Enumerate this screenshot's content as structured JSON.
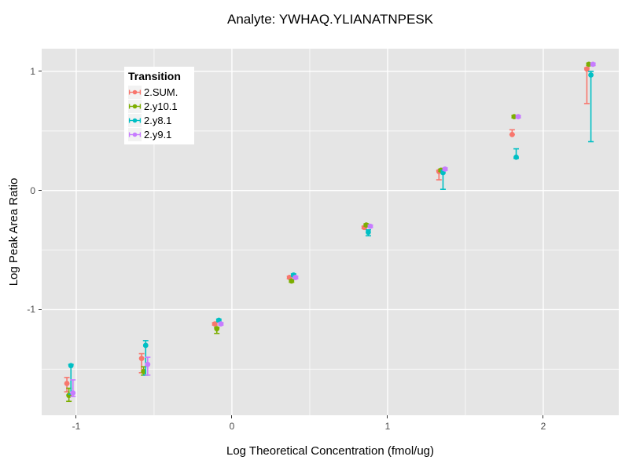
{
  "chart_data": {
    "type": "scatter",
    "subtype": "pointrange-with-errorbars",
    "title": "Analyte: YWHAQ.YLIANATNPESK",
    "xlabel": "Log Theoretical Concentration (fmol/ug)",
    "ylabel": "Log Peak Area Ratio",
    "legend_title": "Transition",
    "legend_position": "inset-top-left",
    "panel_bg": "#E5E5E5",
    "grid_color": "#FFFFFF",
    "tick_label_color": "#4D4D4D",
    "axis_tick_color": "#333333",
    "xlim": [
      -1.222,
      2.485
    ],
    "ylim": [
      -1.887,
      1.191
    ],
    "x_major_ticks": [
      -1,
      0,
      1,
      2
    ],
    "y_major_ticks": [
      -1,
      0,
      1
    ],
    "x_minor_gridlines": [
      -0.5,
      0.5,
      1.5
    ],
    "y_minor_gridlines": [
      -1.5,
      -0.5,
      0.5
    ],
    "x": [
      -1.04,
      -0.56,
      -0.09,
      0.39,
      0.87,
      1.35,
      1.82,
      2.3
    ],
    "series": [
      {
        "name": "2.SUM.",
        "color": "#F8766D",
        "dodge": -0.02,
        "y": [
          -1.62,
          -1.41,
          -1.12,
          -0.73,
          -0.31,
          0.16,
          0.47,
          1.02
        ],
        "ymin": [
          -1.69,
          -1.53,
          -1.13,
          -0.74,
          -0.32,
          0.09,
          0.47,
          0.73
        ],
        "ymax": [
          -1.57,
          -1.37,
          -1.11,
          -0.72,
          -0.3,
          0.17,
          0.51,
          1.03
        ]
      },
      {
        "name": "2.y10.1",
        "color": "#7CAE00",
        "dodge": -0.007,
        "y": [
          -1.72,
          -1.52,
          -1.16,
          -0.76,
          -0.29,
          0.17,
          0.62,
          1.06
        ],
        "ymin": [
          -1.77,
          -1.55,
          -1.2,
          -0.77,
          -0.3,
          0.16,
          0.61,
          1.05
        ],
        "ymax": [
          -1.66,
          -1.48,
          -1.15,
          -0.75,
          -0.28,
          0.18,
          0.63,
          1.07
        ]
      },
      {
        "name": "2.y8.1",
        "color": "#00BFC4",
        "dodge": 0.006,
        "y": [
          -1.47,
          -1.3,
          -1.09,
          -0.71,
          -0.35,
          0.15,
          0.28,
          0.97
        ],
        "ymin": [
          -1.71,
          -1.55,
          -1.1,
          -0.72,
          -0.38,
          0.01,
          0.27,
          0.41
        ],
        "ymax": [
          -1.46,
          -1.26,
          -1.08,
          -0.7,
          -0.33,
          0.17,
          0.35,
          1.0
        ]
      },
      {
        "name": "2.y9.1",
        "color": "#C77CFF",
        "dodge": 0.019,
        "y": [
          -1.7,
          -1.46,
          -1.12,
          -0.73,
          -0.3,
          0.18,
          0.62,
          1.06
        ],
        "ymin": [
          -1.73,
          -1.55,
          -1.13,
          -0.74,
          -0.31,
          0.17,
          0.61,
          1.05
        ],
        "ymax": [
          -1.59,
          -1.4,
          -1.11,
          -0.72,
          -0.29,
          0.19,
          0.63,
          1.07
        ]
      }
    ]
  }
}
